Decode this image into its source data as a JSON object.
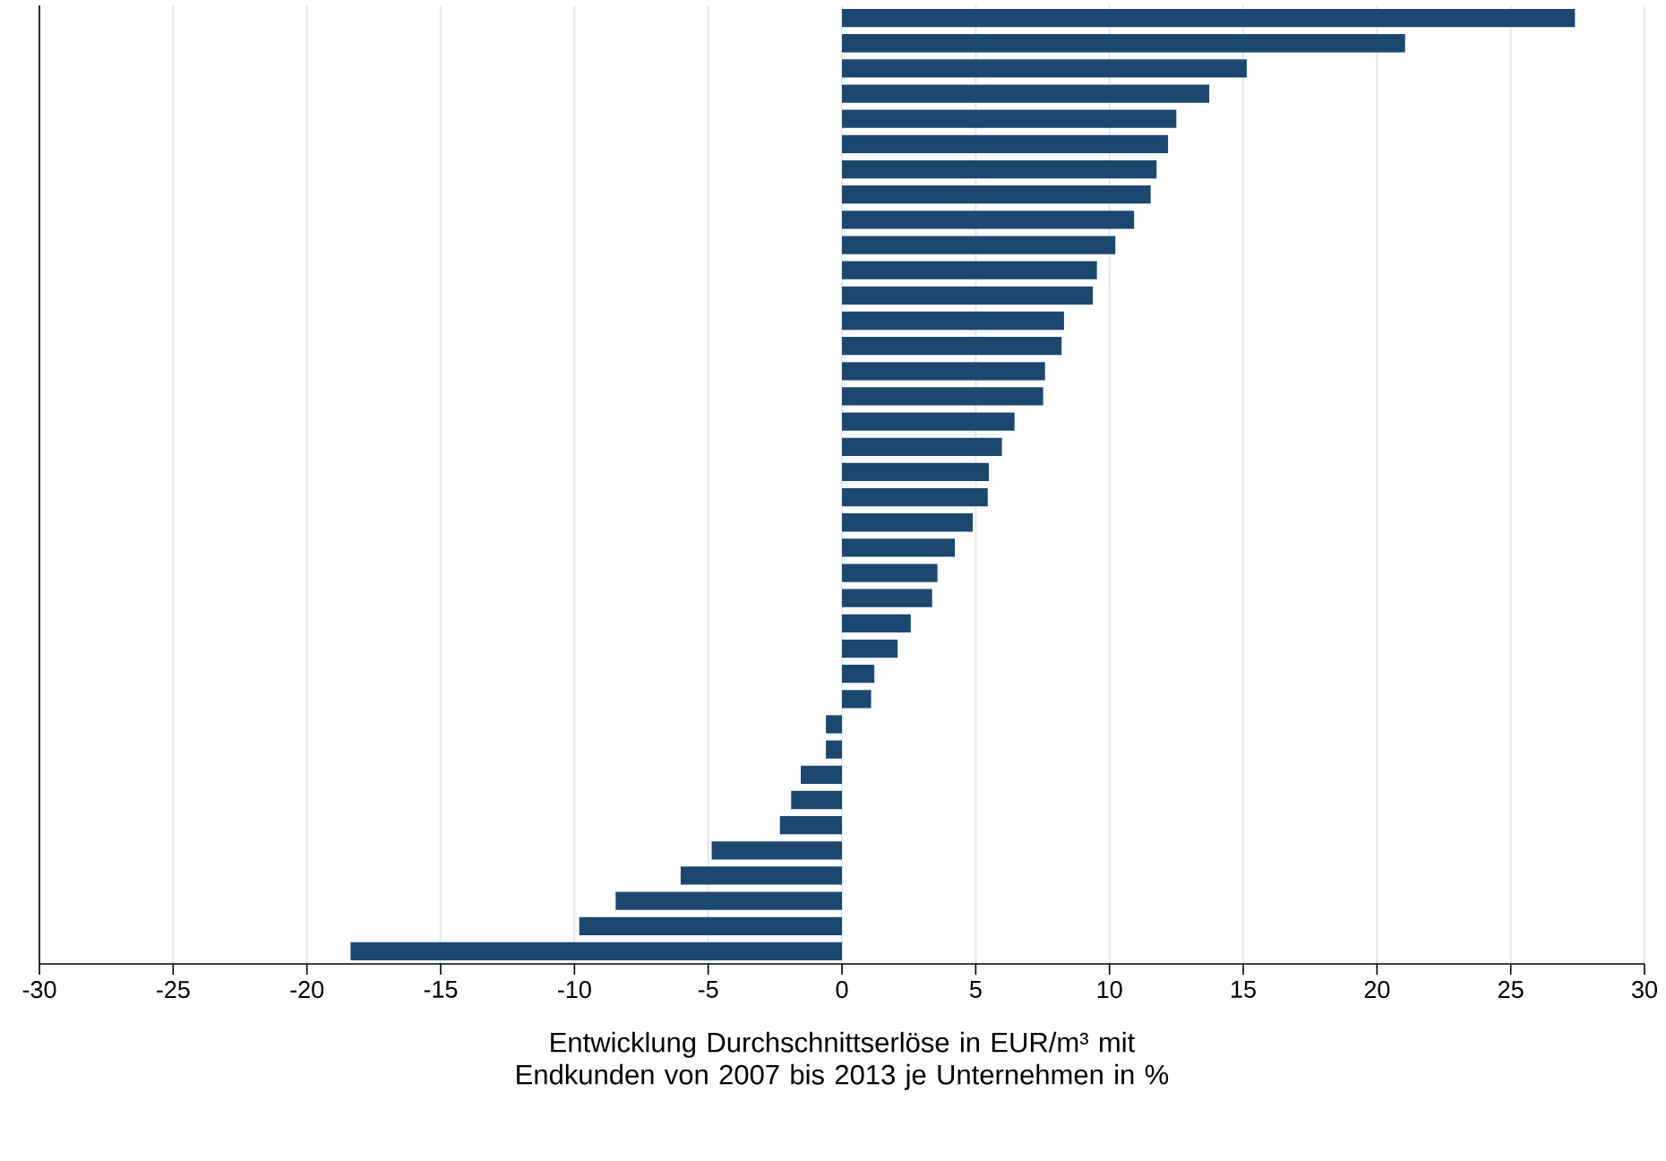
{
  "chart_data": {
    "type": "bar",
    "orientation": "horizontal",
    "categories": [
      null,
      null,
      null,
      null,
      null,
      null,
      null,
      null,
      null,
      null,
      null,
      null,
      null,
      null,
      null,
      null,
      null,
      null,
      null,
      null,
      null,
      null,
      null,
      null,
      null,
      null,
      null,
      null,
      null,
      null,
      null,
      null,
      null,
      null,
      null,
      null,
      null,
      null
    ],
    "values": [
      27.4,
      21.05,
      15.13,
      13.73,
      12.5,
      12.19,
      11.76,
      11.54,
      10.92,
      10.22,
      9.53,
      9.38,
      8.3,
      8.21,
      7.59,
      7.52,
      6.45,
      5.98,
      5.49,
      5.45,
      4.89,
      4.22,
      3.57,
      3.37,
      2.57,
      2.08,
      1.21,
      1.09,
      -0.6,
      -0.6,
      -1.54,
      -1.9,
      -2.32,
      -4.87,
      -6.03,
      -8.46,
      -9.82,
      -18.37
    ],
    "color": "#1c4870",
    "xlim": [
      -30,
      30
    ],
    "xticks": [
      -30,
      -25,
      -20,
      -15,
      -10,
      -5,
      0,
      5,
      10,
      15,
      20,
      25,
      30
    ],
    "grid": "x",
    "xlabel": "Entwicklung Durchschnittserlöse in EUR/m³ mit Endkunden von 2007 bis 2013 je Unternehmen in %"
  }
}
